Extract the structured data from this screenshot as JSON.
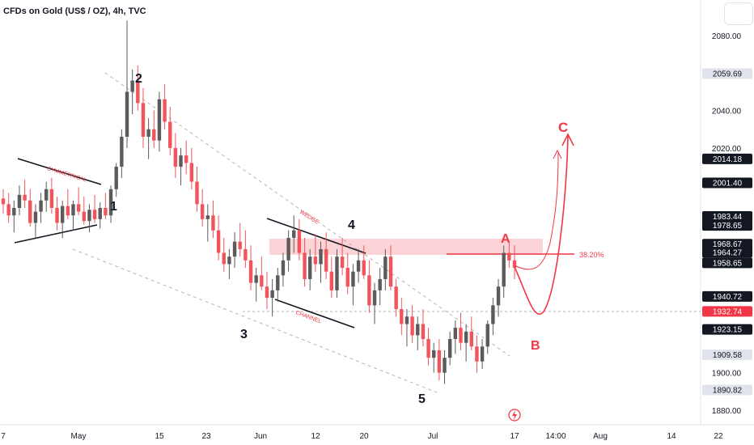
{
  "header": {
    "title": "CFDs on Gold (US$ / OZ), 4h, TVC"
  },
  "chart_data": {
    "type": "candlestick",
    "ylim": [
      1880,
      2090
    ],
    "y_ticks": [
      "2080.00",
      "2040.00",
      "2020.00",
      "1900.00",
      "1880.00"
    ],
    "x_ticks": [
      "7",
      "May",
      "15",
      "23",
      "Jun",
      "12",
      "20",
      "Jul",
      "17",
      "14:00",
      "Aug",
      "14",
      "22"
    ],
    "price_labels": [
      {
        "value": "2059.69",
        "style": "gray"
      },
      {
        "value": "2014.18",
        "style": "dark"
      },
      {
        "value": "2001.40",
        "style": "dark"
      },
      {
        "value": "1983.44",
        "style": "dark"
      },
      {
        "value": "1978.65",
        "style": "dark"
      },
      {
        "value": "1968.67",
        "style": "dark"
      },
      {
        "value": "1964.27",
        "style": "dark"
      },
      {
        "value": "1958.65",
        "style": "dark"
      },
      {
        "value": "1940.72",
        "style": "dark"
      },
      {
        "value": "1932.74",
        "style": "red"
      },
      {
        "value": "1923.15",
        "style": "dark"
      },
      {
        "value": "1909.58",
        "style": "gray"
      },
      {
        "value": "1890.82",
        "style": "gray"
      }
    ],
    "wave_labels": [
      "1",
      "2",
      "3",
      "4",
      "5",
      "A",
      "B",
      "C"
    ],
    "annotations": {
      "symmetrical": "SYMMETRICAL",
      "wedge": "WEDGE",
      "channel": "CHANNEL",
      "fib": "38.20%"
    },
    "colors": {
      "up": "#5b5b5b",
      "down": "#f2545b",
      "accent": "#f23645",
      "zone": "rgba(242,54,69,0.22)"
    },
    "candles": [
      [
        1993,
        1998,
        1985,
        1990
      ],
      [
        1990,
        1996,
        1980,
        1984
      ],
      [
        1984,
        1992,
        1975,
        1988
      ],
      [
        1988,
        2000,
        1984,
        1995
      ],
      [
        1995,
        2003,
        1988,
        1992
      ],
      [
        1992,
        1998,
        1978,
        1980
      ],
      [
        1980,
        1990,
        1972,
        1986
      ],
      [
        1986,
        1996,
        1980,
        1992
      ],
      [
        1992,
        2002,
        1986,
        1998
      ],
      [
        1998,
        2004,
        1985,
        1988
      ],
      [
        1988,
        1994,
        1976,
        1980
      ],
      [
        1980,
        1992,
        1972,
        1989
      ],
      [
        1989,
        1998,
        1982,
        1984
      ],
      [
        1984,
        1992,
        1976,
        1990
      ],
      [
        1990,
        1999,
        1984,
        1986
      ],
      [
        1986,
        1994,
        1979,
        1981
      ],
      [
        1981,
        1990,
        1975,
        1987
      ],
      [
        1987,
        1995,
        1980,
        1982
      ],
      [
        1982,
        1991,
        1977,
        1988
      ],
      [
        1988,
        1996,
        1982,
        1984
      ],
      [
        1984,
        2000,
        1980,
        1998
      ],
      [
        1998,
        2012,
        1994,
        2010
      ],
      [
        2010,
        2030,
        2004,
        2026
      ],
      [
        2026,
        2088,
        2020,
        2050
      ],
      [
        2050,
        2062,
        2038,
        2056
      ],
      [
        2056,
        2064,
        2040,
        2044
      ],
      [
        2044,
        2052,
        2020,
        2026
      ],
      [
        2026,
        2036,
        2014,
        2030
      ],
      [
        2030,
        2040,
        2020,
        2024
      ],
      [
        2024,
        2050,
        2018,
        2046
      ],
      [
        2046,
        2054,
        2030,
        2034
      ],
      [
        2034,
        2042,
        2016,
        2020
      ],
      [
        2020,
        2028,
        2004,
        2010
      ],
      [
        2010,
        2020,
        2000,
        2016
      ],
      [
        2016,
        2024,
        2006,
        2012
      ],
      [
        2012,
        2020,
        1998,
        2002
      ],
      [
        2002,
        2010,
        1986,
        1990
      ],
      [
        1990,
        1998,
        1978,
        1982
      ],
      [
        1982,
        1990,
        1970,
        1984
      ],
      [
        1984,
        1992,
        1972,
        1976
      ],
      [
        1976,
        1984,
        1960,
        1964
      ],
      [
        1964,
        1972,
        1954,
        1958
      ],
      [
        1958,
        1966,
        1950,
        1962
      ],
      [
        1962,
        1975,
        1956,
        1970
      ],
      [
        1970,
        1980,
        1962,
        1966
      ],
      [
        1966,
        1976,
        1956,
        1960
      ],
      [
        1960,
        1968,
        1944,
        1948
      ],
      [
        1948,
        1956,
        1938,
        1952
      ],
      [
        1952,
        1962,
        1944,
        1946
      ],
      [
        1946,
        1954,
        1934,
        1940
      ],
      [
        1940,
        1950,
        1930,
        1944
      ],
      [
        1944,
        1956,
        1938,
        1952
      ],
      [
        1952,
        1964,
        1946,
        1960
      ],
      [
        1960,
        1976,
        1954,
        1972
      ],
      [
        1972,
        1984,
        1964,
        1976
      ],
      [
        1976,
        1982,
        1960,
        1964
      ],
      [
        1964,
        1972,
        1946,
        1950
      ],
      [
        1950,
        1966,
        1944,
        1962
      ],
      [
        1962,
        1974,
        1954,
        1958
      ],
      [
        1958,
        1970,
        1948,
        1966
      ],
      [
        1966,
        1975,
        1950,
        1954
      ],
      [
        1954,
        1962,
        1940,
        1944
      ],
      [
        1944,
        1966,
        1940,
        1962
      ],
      [
        1962,
        1972,
        1952,
        1956
      ],
      [
        1956,
        1964,
        1942,
        1946
      ],
      [
        1946,
        1958,
        1936,
        1954
      ],
      [
        1954,
        1966,
        1948,
        1960
      ],
      [
        1960,
        1968,
        1950,
        1952
      ],
      [
        1952,
        1960,
        1932,
        1936
      ],
      [
        1936,
        1948,
        1926,
        1944
      ],
      [
        1944,
        1956,
        1936,
        1950
      ],
      [
        1950,
        1966,
        1944,
        1962
      ],
      [
        1962,
        1968,
        1944,
        1946
      ],
      [
        1946,
        1950,
        1930,
        1934
      ],
      [
        1934,
        1940,
        1920,
        1926
      ],
      [
        1926,
        1934,
        1914,
        1930
      ],
      [
        1930,
        1936,
        1916,
        1920
      ],
      [
        1920,
        1930,
        1912,
        1926
      ],
      [
        1926,
        1934,
        1914,
        1918
      ],
      [
        1918,
        1924,
        1904,
        1908
      ],
      [
        1908,
        1916,
        1900,
        1912
      ],
      [
        1912,
        1918,
        1896,
        1900
      ],
      [
        1900,
        1912,
        1894,
        1908
      ],
      [
        1908,
        1922,
        1904,
        1918
      ],
      [
        1918,
        1928,
        1910,
        1924
      ],
      [
        1924,
        1932,
        1912,
        1916
      ],
      [
        1916,
        1926,
        1906,
        1922
      ],
      [
        1922,
        1930,
        1912,
        1914
      ],
      [
        1914,
        1920,
        1900,
        1906
      ],
      [
        1906,
        1918,
        1902,
        1914
      ],
      [
        1914,
        1928,
        1910,
        1926
      ],
      [
        1926,
        1940,
        1920,
        1936
      ],
      [
        1936,
        1950,
        1930,
        1946
      ],
      [
        1946,
        1968,
        1940,
        1964
      ],
      [
        1964,
        1970,
        1956,
        1960
      ],
      [
        1960,
        1968,
        1950,
        1956
      ]
    ]
  }
}
